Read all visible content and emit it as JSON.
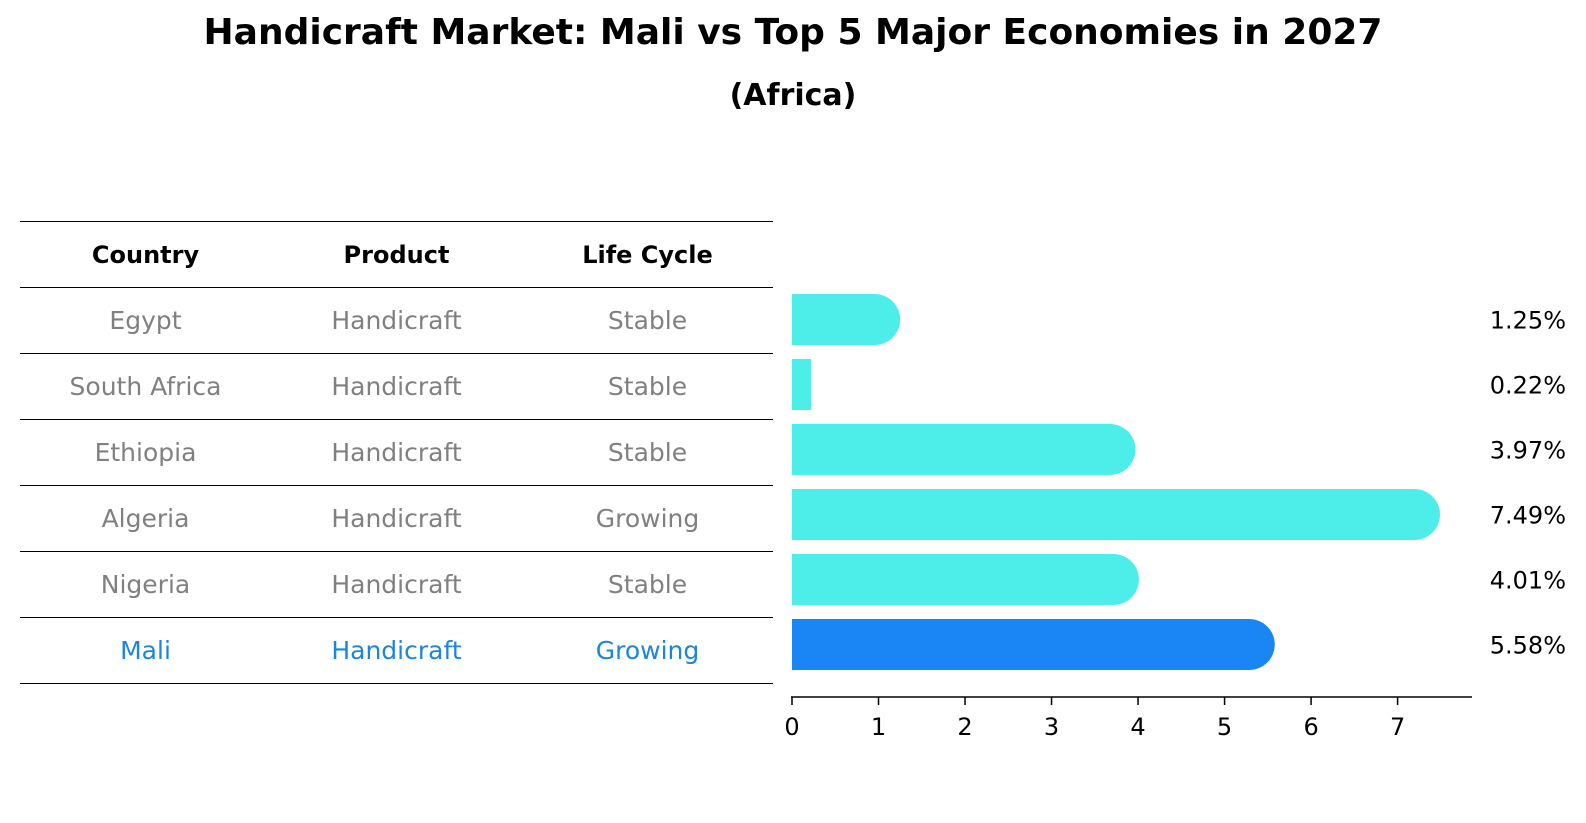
{
  "chart_data": {
    "type": "bar",
    "orientation": "horizontal",
    "title": "Handicraft Market: Mali vs Top 5 Major Economies in 2027",
    "subtitle": "(Africa)",
    "table": {
      "headers": [
        "Country",
        "Product",
        "Life Cycle"
      ],
      "rows": [
        {
          "country": "Egypt",
          "product": "Handicraft",
          "life_cycle": "Stable"
        },
        {
          "country": "South Africa",
          "product": "Handicraft",
          "life_cycle": "Stable"
        },
        {
          "country": "Ethiopia",
          "product": "Handicraft",
          "life_cycle": "Stable"
        },
        {
          "country": "Algeria",
          "product": "Handicraft",
          "life_cycle": "Growing"
        },
        {
          "country": "Nigeria",
          "product": "Handicraft",
          "life_cycle": "Stable"
        },
        {
          "country": "Mali",
          "product": "Handicraft",
          "life_cycle": "Growing"
        }
      ]
    },
    "categories": [
      "Egypt",
      "South Africa",
      "Ethiopia",
      "Algeria",
      "Nigeria",
      "Mali"
    ],
    "values": [
      1.25,
      0.22,
      3.97,
      7.49,
      4.01,
      5.58
    ],
    "value_labels": [
      "1.25%",
      "0.22%",
      "3.97%",
      "7.49%",
      "4.01%",
      "5.58%"
    ],
    "highlight": "Mali",
    "colors": {
      "default": "#4deeea",
      "highlight": "#1a86f5",
      "highlight_text": "#1a86e0",
      "muted_text": "#808080"
    },
    "xlim": [
      0,
      7.86
    ],
    "xticks": [
      "0",
      "1",
      "2",
      "3",
      "4",
      "5",
      "6",
      "7"
    ],
    "xlabel": "",
    "ylabel": "",
    "grid": false
  }
}
